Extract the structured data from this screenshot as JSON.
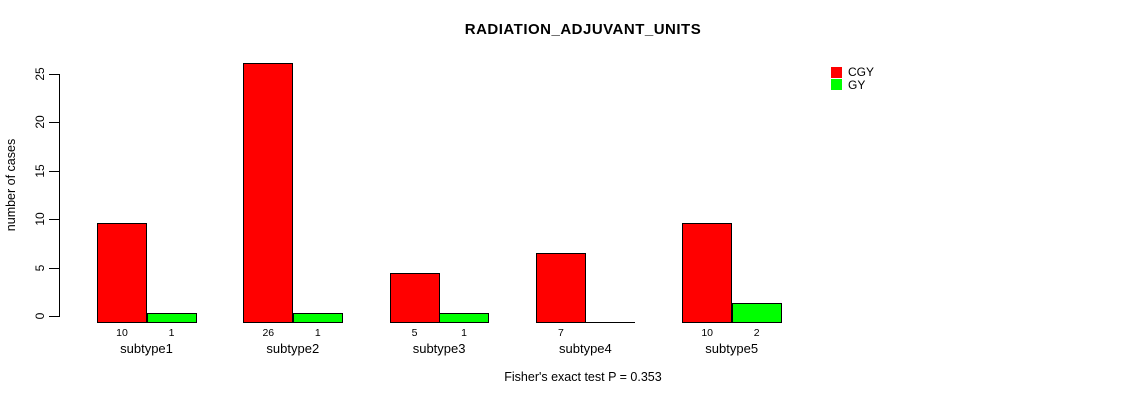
{
  "chart_data": {
    "type": "bar",
    "title": "RADIATION_ADJUVANT_UNITS",
    "ylabel": "number of cases",
    "xlabel": "",
    "footer": "Fisher's exact test P = 0.353",
    "categories": [
      "subtype1",
      "subtype2",
      "subtype3",
      "subtype4",
      "subtype5"
    ],
    "series": [
      {
        "name": "CGY",
        "color": "#ff0000",
        "values": [
          10,
          26,
          5,
          7,
          10
        ],
        "bar_labels": [
          "10",
          "26",
          "5",
          "7",
          "10"
        ]
      },
      {
        "name": "GY",
        "color": "#00ff00",
        "values": [
          1,
          1,
          1,
          0,
          2
        ],
        "bar_labels": [
          "1",
          "1",
          "1",
          "",
          "2"
        ]
      }
    ],
    "yticks": [
      0,
      5,
      10,
      15,
      20,
      25
    ],
    "ylim": [
      0,
      26
    ],
    "grid": false,
    "legend_position": "top-right",
    "bar_border_color": "#000000",
    "text_color": "#000000"
  }
}
